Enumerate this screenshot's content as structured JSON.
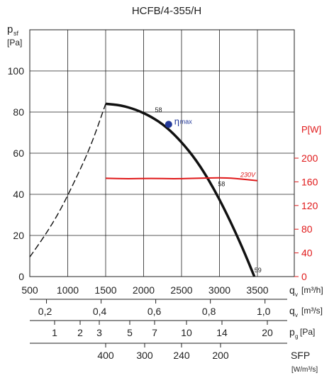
{
  "chart_data": {
    "type": "line",
    "title": "HCFB/4-355/H",
    "y_left": {
      "label_main": "p",
      "label_sub": "sf",
      "unit": "[Pa]",
      "range": [
        0,
        100
      ],
      "ticks": [
        0,
        20,
        40,
        60,
        80,
        100
      ]
    },
    "y_right": {
      "label": "P[W]",
      "range": [
        0,
        280
      ],
      "ticks": [
        0,
        40,
        80,
        120,
        160,
        200
      ]
    },
    "x": {
      "label_main": "q",
      "label_sub": "v",
      "unit": "[m³/h]",
      "range": [
        500,
        3500
      ],
      "ticks": [
        500,
        1000,
        1500,
        2000,
        2500,
        3000,
        3500
      ]
    },
    "scale_ms": {
      "label_main": "q",
      "label_sub": "v",
      "unit": "[m³/s]",
      "ticks": [
        "0,2",
        "0,4",
        "0,6",
        "0,8",
        "1,0"
      ]
    },
    "scale_pa": {
      "label_main": "p",
      "label_sub": "g",
      "unit": "[Pa]",
      "ticks": [
        "1",
        "2",
        "3",
        "5",
        "7",
        "10",
        "14",
        "20"
      ]
    },
    "scale_sfp": {
      "label": "SFP",
      "unit": "[W/m³/s]",
      "ticks": [
        "400",
        "300",
        "240",
        "200"
      ]
    },
    "series": [
      {
        "name": "pressure_unstable",
        "style": "dashed",
        "x": [
          500,
          700,
          900,
          1100,
          1300,
          1500
        ],
        "y": [
          9.5,
          20,
          32,
          47,
          63,
          84
        ]
      },
      {
        "name": "pressure",
        "style": "solid",
        "x": [
          1500,
          1700,
          1900,
          2100,
          2300,
          2500,
          2700,
          2900,
          3100,
          3300,
          3460
        ],
        "y": [
          84,
          83.3,
          81.2,
          77.8,
          72.8,
          65.5,
          56.3,
          44.5,
          30.3,
          14.3,
          0
        ]
      },
      {
        "name": "230V",
        "axis": "right",
        "color": "#e0191a",
        "x": [
          1500,
          1800,
          2100,
          2400,
          2700,
          3000,
          3200,
          3500
        ],
        "y": [
          166,
          165,
          166,
          165,
          166,
          167,
          166,
          162
        ]
      }
    ],
    "annotations": [
      {
        "text": "58",
        "x": 2150,
        "y": 80,
        "axis": "left"
      },
      {
        "text": "58",
        "x": 2980,
        "y": 44,
        "axis": "left"
      },
      {
        "text": "59",
        "x": 3460,
        "y": 2,
        "axis": "left"
      }
    ],
    "eta_max": {
      "symbol": "η",
      "sub": "max",
      "x": 2330,
      "y": 74,
      "color": "#23399a"
    },
    "grid": true
  }
}
